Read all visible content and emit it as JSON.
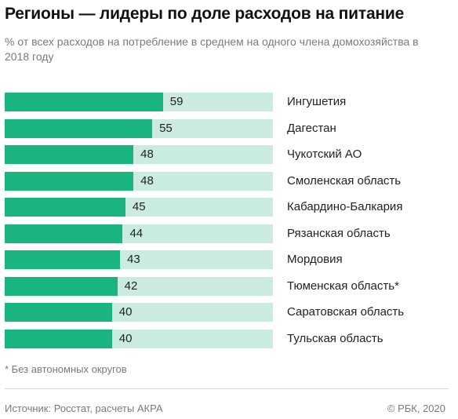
{
  "header": {
    "title": "Регионы — лидеры по доле расходов на питание",
    "subtitle": "% от всех расходов на потребление в среднем на одного члена домохозяйства в 2018 году"
  },
  "chart_data": {
    "type": "bar",
    "orientation": "horizontal",
    "title": "Регионы — лидеры по доле расходов на питание",
    "subtitle": "% от всех расходов на потребление в среднем на одного члена домохозяйства в 2018 году",
    "categories": [
      "Ингушетия",
      "Дагестан",
      "Чукотский АО",
      "Смоленская область",
      "Кабардино-Балкария",
      "Рязанская область",
      "Мордовия",
      "Тюменская область*",
      "Саратовская область",
      "Тульская область"
    ],
    "values": [
      59,
      55,
      48,
      48,
      45,
      44,
      43,
      42,
      40,
      40
    ],
    "xlim": [
      0,
      100
    ],
    "grid": false,
    "colors": {
      "bar": "#1ab57e",
      "track": "#c9ecdf"
    }
  },
  "footer": {
    "footnote": "* Без автономных округов",
    "source": "Источник: Росстат, расчеты АКРА",
    "copyright": "© РБК, 2020"
  }
}
